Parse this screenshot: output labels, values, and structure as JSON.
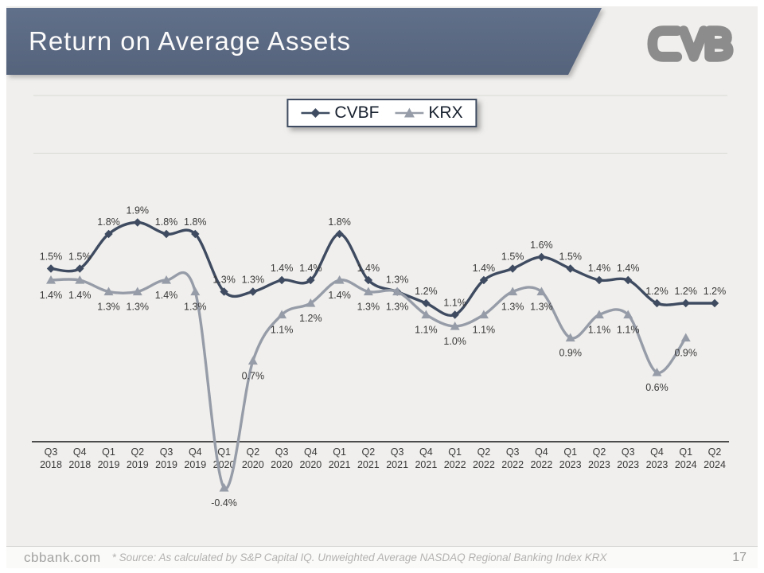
{
  "slide": {
    "title": "Return on Average Assets",
    "page_number": "17",
    "website": "cbbank.com",
    "source_note": "* Source: As calculated by S&P Capital IQ. Unweighted Average NASDAQ Regional Banking Index KRX"
  },
  "chart_data": {
    "type": "line",
    "title": "Return on Average Assets",
    "value_suffix": "%",
    "ylim": [
      -0.75,
      3.0
    ],
    "gridlines": [
      2.5,
      3.0
    ],
    "legend_position": "top-center",
    "categories": [
      "Q3 2018",
      "Q4 2018",
      "Q1 2019",
      "Q2 2019",
      "Q3 2019",
      "Q4 2019",
      "Q1 2020",
      "Q2 2020",
      "Q3 2020",
      "Q4 2020",
      "Q1 2021",
      "Q2 2021",
      "Q3 2021",
      "Q4 2021",
      "Q1 2022",
      "Q2 2022",
      "Q3 2022",
      "Q4 2022",
      "Q1 2023",
      "Q2 2023",
      "Q3 2023",
      "Q4 2023",
      "Q1 2024",
      "Q2 2024"
    ],
    "series": [
      {
        "name": "CVBF",
        "color": "#3e4b60",
        "marker": "diamond",
        "values": [
          1.5,
          1.5,
          1.8,
          1.9,
          1.8,
          1.8,
          1.3,
          1.3,
          1.4,
          1.4,
          1.8,
          1.4,
          1.3,
          1.2,
          1.1,
          1.4,
          1.5,
          1.6,
          1.5,
          1.4,
          1.4,
          1.2,
          1.2,
          1.2
        ]
      },
      {
        "name": "KRX",
        "color": "#979da8",
        "marker": "triangle",
        "values": [
          1.4,
          1.4,
          1.3,
          1.3,
          1.4,
          1.3,
          -0.4,
          0.7,
          1.1,
          1.2,
          1.4,
          1.3,
          1.3,
          1.1,
          1.0,
          1.1,
          1.3,
          1.3,
          0.9,
          1.1,
          1.1,
          0.6,
          0.9,
          null
        ]
      }
    ]
  }
}
